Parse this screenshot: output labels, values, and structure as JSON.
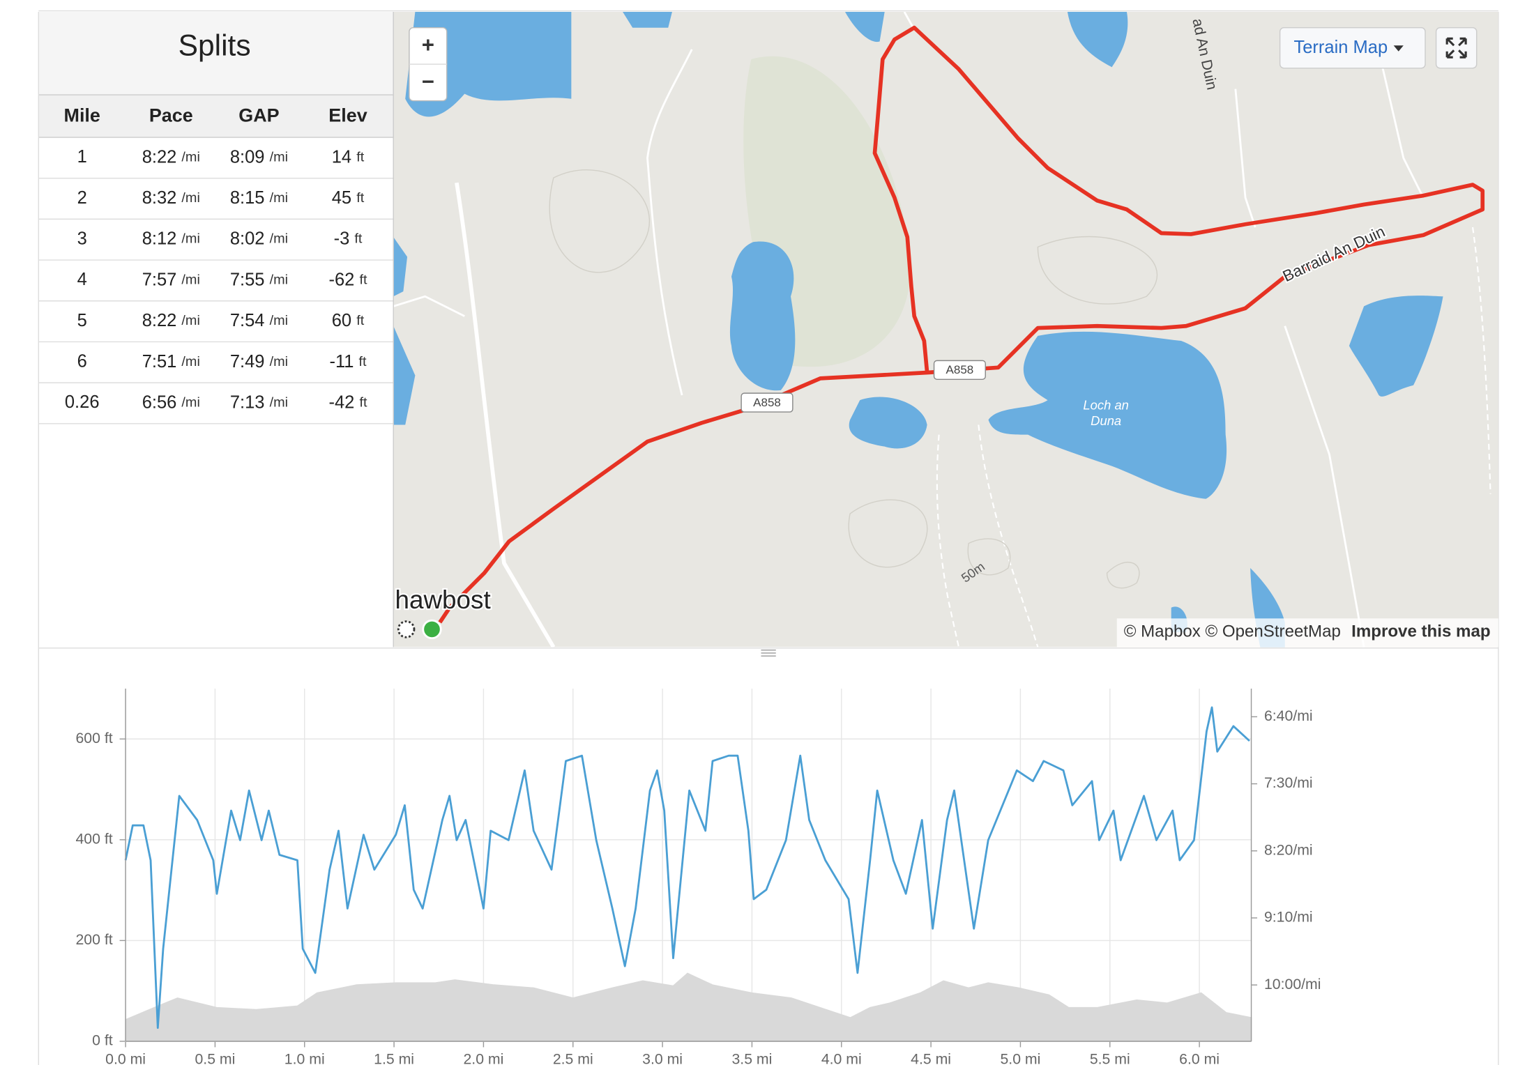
{
  "splits": {
    "title": "Splits",
    "columns": [
      "Mile",
      "Pace",
      "GAP",
      "Elev"
    ],
    "rows": [
      [
        "1",
        "8:22",
        "/mi",
        "8:09",
        "/mi",
        "14",
        "ft"
      ],
      [
        "2",
        "8:32",
        "/mi",
        "8:15",
        "/mi",
        "45",
        "ft"
      ],
      [
        "3",
        "8:12",
        "/mi",
        "8:02",
        "/mi",
        "-3",
        "ft"
      ],
      [
        "4",
        "7:57",
        "/mi",
        "7:55",
        "/mi",
        "-62",
        "ft"
      ],
      [
        "5",
        "8:22",
        "/mi",
        "7:54",
        "/mi",
        "60",
        "ft"
      ],
      [
        "6",
        "7:51",
        "/mi",
        "7:49",
        "/mi",
        "-11",
        "ft"
      ],
      [
        "0.26",
        "6:56",
        "/mi",
        "7:13",
        "/mi",
        "-42",
        "ft"
      ]
    ]
  },
  "map": {
    "zoom_in": "+",
    "zoom_out": "−",
    "style_button": "Terrain Map",
    "road_label": "Barraid An Duin",
    "road_label_2": "ad An Duin",
    "route_shield_1": "A858",
    "route_shield_2": "A858",
    "lake_label_1": "Loch an",
    "lake_label_2": "Duna",
    "place_label": "hawbost",
    "contour_label": "50m",
    "attribution": "© Mapbox © OpenStreetMap",
    "improve": "Improve this map"
  },
  "chart_data": {
    "type": "line",
    "grid": true,
    "xlim": [
      0,
      6.29
    ],
    "xticks": [
      {
        "value": 0,
        "label": "0.0 mi"
      },
      {
        "value": 0.5,
        "label": "0.5 mi"
      },
      {
        "value": 1,
        "label": "1.0 mi"
      },
      {
        "value": 1.5,
        "label": "1.5 mi"
      },
      {
        "value": 2,
        "label": "2.0 mi"
      },
      {
        "value": 2.5,
        "label": "2.5 mi"
      },
      {
        "value": 3,
        "label": "3.0 mi"
      },
      {
        "value": 3.5,
        "label": "3.5 mi"
      },
      {
        "value": 4,
        "label": "4.0 mi"
      },
      {
        "value": 4.5,
        "label": "4.5 mi"
      },
      {
        "value": 5,
        "label": "5.0 mi"
      },
      {
        "value": 5.5,
        "label": "5.5 mi"
      },
      {
        "value": 6,
        "label": "6.0 mi"
      }
    ],
    "ylim": [
      0,
      700
    ],
    "yticks": [
      {
        "value": 0,
        "label": "0 ft"
      },
      {
        "value": 200,
        "label": "200 ft"
      },
      {
        "value": 400,
        "label": "400 ft"
      },
      {
        "value": 600,
        "label": "600 ft"
      }
    ],
    "y2lim": [
      642,
      379
    ],
    "y2ticks": [
      {
        "value": 400,
        "label": "6:40/mi"
      },
      {
        "value": 450,
        "label": "7:30/mi"
      },
      {
        "value": 500,
        "label": "8:20/mi"
      },
      {
        "value": 550,
        "label": "9:10/mi"
      },
      {
        "value": 600,
        "label": "10:00/mi"
      }
    ],
    "series": [
      {
        "type": "area",
        "color": "#d9d9d9",
        "x": [
          0,
          0.18,
          0.29,
          0.51,
          0.73,
          0.96,
          1.07,
          1.29,
          1.51,
          1.73,
          1.84,
          2.06,
          2.28,
          2.5,
          2.72,
          2.89,
          3.06,
          3.14,
          3.28,
          3.5,
          3.72,
          3.88,
          4.05,
          4.16,
          4.27,
          4.44,
          4.57,
          4.71,
          4.82,
          4.99,
          5.16,
          5.27,
          5.43,
          5.65,
          5.82,
          6.01,
          6.15,
          6.29
        ],
        "values": [
          43,
          70,
          86,
          67,
          63,
          70,
          96,
          112,
          116,
          116,
          122,
          112,
          106,
          86,
          106,
          120,
          110,
          135,
          112,
          96,
          86,
          67,
          47,
          67,
          76,
          96,
          120,
          106,
          116,
          106,
          92,
          67,
          67,
          82,
          76,
          96,
          57,
          47
        ]
      },
      {
        "type": "line",
        "axis": "y2",
        "color": "#4a9fd4",
        "x": [
          0.0,
          0.04,
          0.1,
          0.14,
          0.18,
          0.21,
          0.3,
          0.4,
          0.49,
          0.51,
          0.59,
          0.64,
          0.69,
          0.76,
          0.8,
          0.86,
          0.96,
          0.99,
          1.06,
          1.14,
          1.19,
          1.24,
          1.33,
          1.39,
          1.51,
          1.56,
          1.61,
          1.66,
          1.77,
          1.81,
          1.85,
          1.9,
          2.0,
          2.04,
          2.14,
          2.23,
          2.28,
          2.38,
          2.46,
          2.55,
          2.63,
          2.72,
          2.79,
          2.85,
          2.93,
          2.97,
          3.01,
          3.06,
          3.15,
          3.24,
          3.28,
          3.37,
          3.42,
          3.48,
          3.51,
          3.58,
          3.69,
          3.77,
          3.82,
          3.91,
          4.04,
          4.09,
          4.16,
          4.2,
          4.29,
          4.36,
          4.45,
          4.51,
          4.59,
          4.63,
          4.74,
          4.82,
          4.98,
          5.07,
          5.13,
          5.24,
          5.29,
          5.4,
          5.44,
          5.52,
          5.56,
          5.69,
          5.76,
          5.85,
          5.89,
          5.97,
          6.04,
          6.07,
          6.1,
          6.19,
          6.28
        ],
        "values": [
          507,
          481,
          481,
          507,
          632,
          573,
          459,
          477,
          507,
          532,
          470,
          492,
          455,
          492,
          470,
          503,
          507,
          573,
          591,
          514,
          485,
          543,
          488,
          514,
          488,
          466,
          529,
          543,
          477,
          459,
          492,
          477,
          543,
          485,
          492,
          440,
          485,
          514,
          433,
          429,
          492,
          543,
          586,
          543,
          455,
          440,
          470,
          580,
          455,
          485,
          433,
          429,
          429,
          485,
          536,
          529,
          492,
          429,
          477,
          507,
          536,
          591,
          507,
          455,
          507,
          532,
          477,
          558,
          477,
          455,
          558,
          492,
          440,
          448,
          433,
          440,
          466,
          448,
          492,
          470,
          507,
          459,
          492,
          470,
          507,
          492,
          411,
          393,
          426,
          407,
          418
        ]
      }
    ]
  }
}
